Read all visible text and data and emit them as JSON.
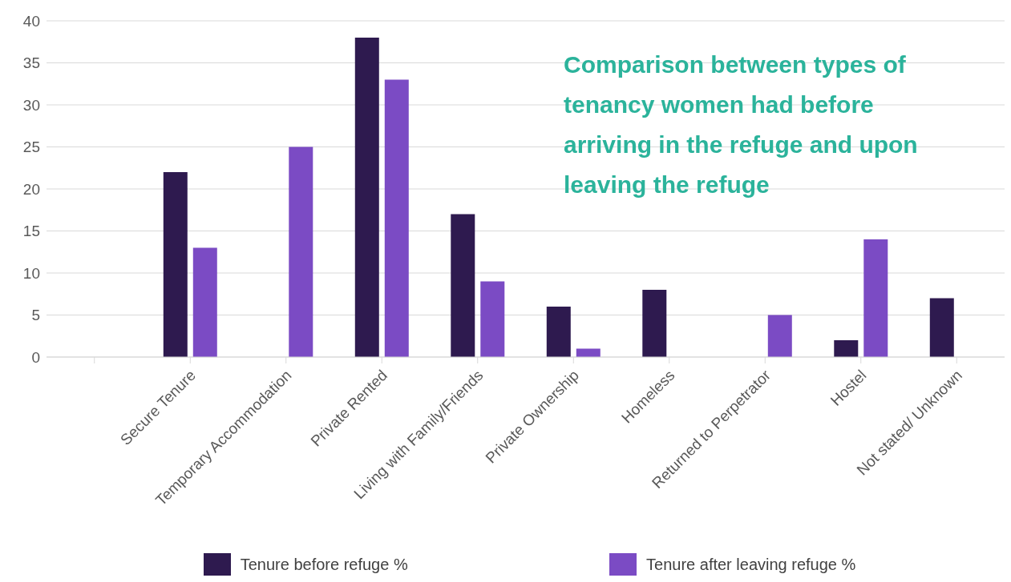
{
  "chart_data": {
    "type": "bar",
    "title": "Comparison between types of tenancy women had before arriving in the refuge and upon leaving the refuge",
    "categories": [
      null,
      "Secure Tenure",
      "Temporary Accommodation",
      "Private Rented",
      "Living with Family/Friends",
      "Private Ownership",
      "Homeless",
      "Returned to Perpetrator",
      "Hostel",
      "Not stated/ Unknown"
    ],
    "series": [
      {
        "name": "Tenure before refuge %",
        "color": "#2e1a4f",
        "values": [
          null,
          22,
          0,
          38,
          17,
          6,
          8,
          0,
          2,
          7
        ]
      },
      {
        "name": "Tenure after leaving refuge %",
        "color": "#7b4bc4",
        "values": [
          null,
          13,
          25,
          33,
          9,
          1,
          0,
          5,
          14,
          0
        ]
      }
    ],
    "ylim": [
      0,
      40
    ],
    "yticks": [
      0,
      5,
      10,
      15,
      20,
      25,
      30,
      35,
      40
    ],
    "grid": "y",
    "legend": "bottom"
  }
}
